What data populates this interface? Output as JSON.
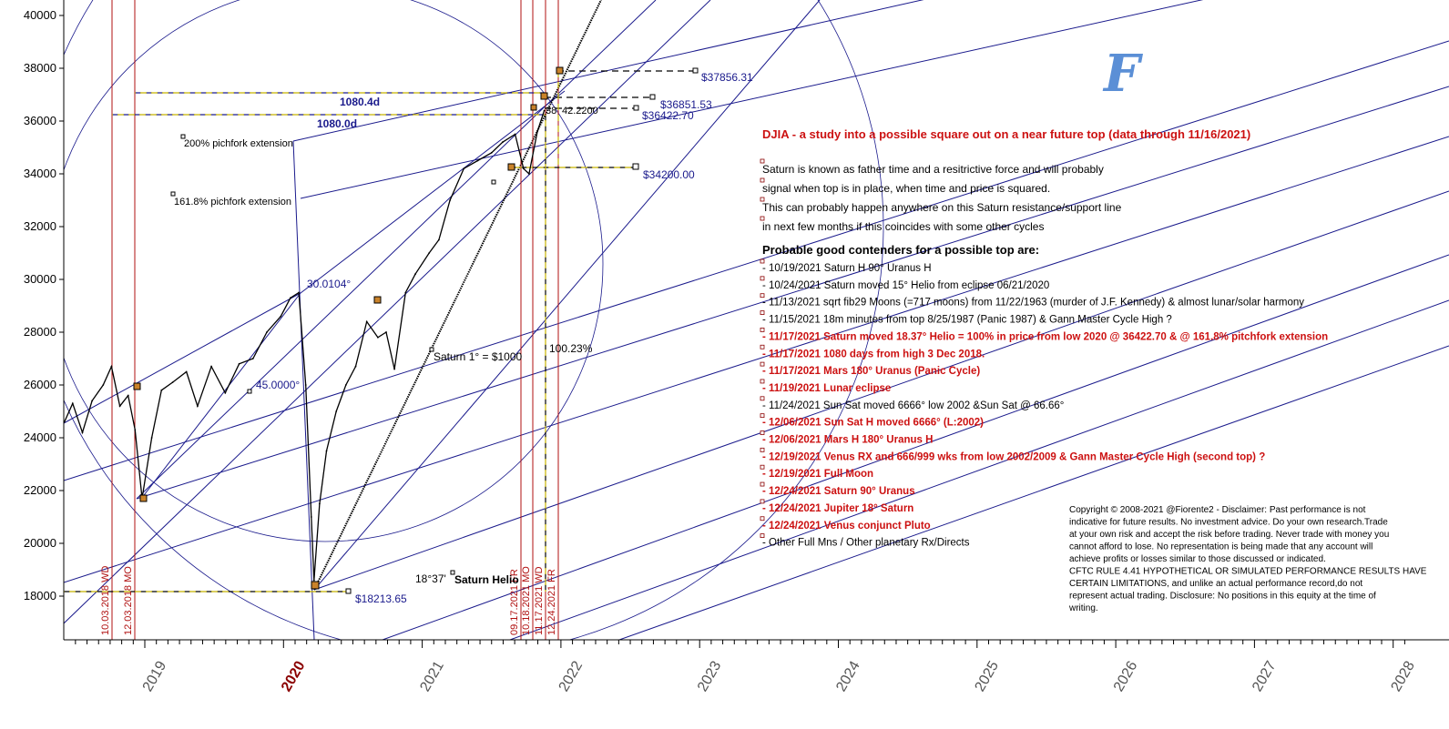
{
  "chart_data": {
    "type": "line",
    "title": "DJIA - a study into a possible square out on a near future top (data through 11/16/2021)",
    "y_ticks": [
      18000,
      20000,
      22000,
      24000,
      26000,
      28000,
      30000,
      32000,
      34000,
      36000,
      38000,
      40000
    ],
    "x_ticks": [
      {
        "label": "2019",
        "year": 2019
      },
      {
        "label": "2020",
        "year": 2020,
        "highlight": true
      },
      {
        "label": "2021",
        "year": 2021
      },
      {
        "label": "2022",
        "year": 2022
      },
      {
        "label": "2023",
        "year": 2023
      },
      {
        "label": "2024",
        "year": 2024
      },
      {
        "label": "2025",
        "year": 2025
      },
      {
        "label": "2026",
        "year": 2026
      },
      {
        "label": "2027",
        "year": 2027
      },
      {
        "label": "2028",
        "year": 2028
      }
    ],
    "ylim": [
      16500,
      40500
    ],
    "xlim": [
      2018.4,
      2028.1
    ],
    "series": [
      {
        "values": [
          [
            2018.42,
            24600
          ],
          [
            2018.48,
            25300
          ],
          [
            2018.55,
            24200
          ],
          [
            2018.62,
            25400
          ],
          [
            2018.7,
            26000
          ],
          [
            2018.76,
            26700
          ],
          [
            2018.82,
            25200
          ],
          [
            2018.88,
            25600
          ],
          [
            2018.93,
            24300
          ],
          [
            2018.98,
            21700
          ],
          [
            2019.05,
            24000
          ],
          [
            2019.12,
            25800
          ],
          [
            2019.2,
            26100
          ],
          [
            2019.3,
            26500
          ],
          [
            2019.38,
            25200
          ],
          [
            2019.48,
            26700
          ],
          [
            2019.58,
            25700
          ],
          [
            2019.68,
            26800
          ],
          [
            2019.78,
            27000
          ],
          [
            2019.88,
            28000
          ],
          [
            2019.98,
            28600
          ],
          [
            2020.05,
            29300
          ],
          [
            2020.11,
            29500
          ],
          [
            2020.16,
            26000
          ],
          [
            2020.2,
            21000
          ],
          [
            2020.22,
            18600
          ],
          [
            2020.26,
            21500
          ],
          [
            2020.31,
            23500
          ],
          [
            2020.38,
            25000
          ],
          [
            2020.45,
            26000
          ],
          [
            2020.52,
            26700
          ],
          [
            2020.6,
            28400
          ],
          [
            2020.68,
            27800
          ],
          [
            2020.74,
            28000
          ],
          [
            2020.8,
            26600
          ],
          [
            2020.88,
            29500
          ],
          [
            2020.95,
            30200
          ],
          [
            2021.05,
            31000
          ],
          [
            2021.12,
            31500
          ],
          [
            2021.2,
            33000
          ],
          [
            2021.3,
            34200
          ],
          [
            2021.4,
            34500
          ],
          [
            2021.5,
            34800
          ],
          [
            2021.58,
            35200
          ],
          [
            2021.67,
            35500
          ],
          [
            2021.73,
            34200
          ],
          [
            2021.77,
            34000
          ],
          [
            2021.83,
            35600
          ],
          [
            2021.88,
            36400
          ]
        ]
      }
    ],
    "annotations": {
      "price_labels": [
        "$37856.31",
        "$36851.53",
        "$36422.70",
        "$34200.00",
        "$18213.65"
      ],
      "time_labels": [
        "1080.4d",
        "1080.0d"
      ],
      "angle_labels": [
        "30.0104°",
        "45.0000°",
        "42.2200",
        "38",
        "100.23%",
        "18°37'"
      ],
      "text_labels": [
        "200% pichfork extension",
        "161.8% pichfork extension",
        "Saturn 1° = $1000",
        "Saturn Helio"
      ],
      "vertical_line_labels": [
        "10.03.2018 WD",
        "12.03.2018 MO",
        "09.17.2021 FR",
        "10.18.2021 MO",
        "11.17.2021 WD",
        "12.24.2021 FR"
      ]
    },
    "grid": false,
    "legend": "none"
  },
  "logo": "F",
  "notes": {
    "intro": [
      "Saturn is known as father time and a resitrictive force and will probably",
      "signal when top is in place, when time and price is squared.",
      "This can probably happen anywhere on this Saturn resistance/support line",
      "in next few months if this coincides with some other cycles"
    ],
    "contenders_header": "Probable good contenders for a possible top are:",
    "events": [
      {
        "text": "- 10/19/2021 Saturn H 90° Uranus H",
        "red": false
      },
      {
        "text": "- 10/24/2021 Saturn moved 15° Helio from eclipse 06/21/2020",
        "red": false
      },
      {
        "text": "- 11/13/2021 sqrt fib29 Moons (=717 moons)  from 11/22/1963 (murder of J.F. Kennedy) & almost lunar/solar harmony",
        "red": false
      },
      {
        "text": "- 11/15/2021 18m minutes from top 8/25/1987 (Panic 1987) & Gann Master Cycle High ?",
        "red": false
      },
      {
        "text": "- 11/17/2021 Saturn moved 18.37° Helio = 100% in price from low 2020 @ 36422.70 & @ 161.8% pitchfork extension",
        "red": true
      },
      {
        "text": "- 11/17/2021 1080 days from high 3 Dec 2018.",
        "red": true
      },
      {
        "text": "- 11/17/2021 Mars 180° Uranus (Panic Cycle)",
        "red": true
      },
      {
        "text": "- 11/19/2021 Lunar eclipse",
        "red": true
      },
      {
        "text": "- 11/24/2021 Sun Sat moved 6666° low 2002 &Sun Sat @ 66.66°",
        "red": false
      },
      {
        "text": "- 12/06/2021 Sun Sat H moved 6666° (L:2002)",
        "red": true
      },
      {
        "text": "- 12/06/2021 Mars H 180° Uranus H",
        "red": true
      },
      {
        "text": "- 12/19/2021 Venus RX and 666/999 wks from low 2002/2009 & Gann Master Cycle High (second top) ?",
        "red": true
      },
      {
        "text": "- 12/19/2021 Full Moon",
        "red": true
      },
      {
        "text": "- 12/24/2021 Saturn 90° Uranus",
        "red": true
      },
      {
        "text": "- 12/24/2021 Jupiter 18° Saturn",
        "red": true
      },
      {
        "text": "- 12/24/2021 Venus conjunct Pluto",
        "red": true
      },
      {
        "text": "- Other Full Mns / Other planetary Rx/Directs",
        "red": false
      }
    ],
    "disclaimer": [
      "Copyright © 2008-2021 @Fiorente2 -  Disclaimer: Past performance is not",
      "indicative for future results. No investment advice. Do your own research.Trade",
      "at your own risk and accept the risk before trading. Never trade with money you",
      "cannot afford to lose. No representation is being made that any account will",
      "achieve profits or losses similar to those discussed or indicated.",
      "CFTC RULE 4.41 HYPOTHETICAL OR SIMULATED PERFORMANCE RESULTS HAVE",
      "CERTAIN LIMITATIONS, and unlike an actual performance record,do not",
      "represent actual trading. Disclosure: No positions in this equity at the time of",
      "writing."
    ]
  },
  "colors": {
    "price": "#000000",
    "fan_lines": "#1a1a8c",
    "vertical_lines": "#b01010",
    "dashed_levels": "#c8b400",
    "title": "#cc1111"
  }
}
